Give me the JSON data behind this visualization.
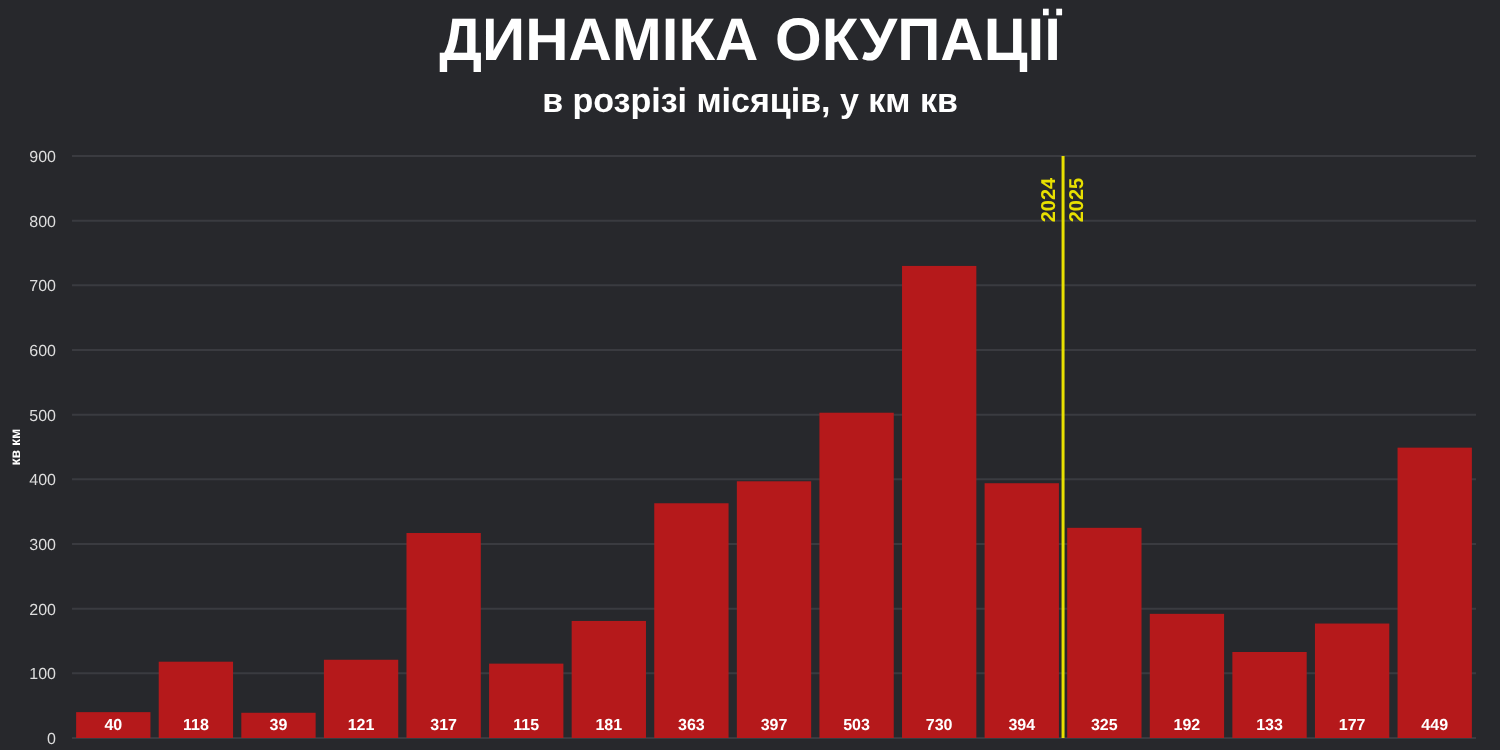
{
  "chart_data": {
    "type": "bar",
    "title": "ДИНАМІКА ОКУПАЦІЇ",
    "subtitle": "в розрізі місяців, у км кв",
    "ylabel": "кв км",
    "categories": [
      null,
      null,
      null,
      null,
      null,
      null,
      null,
      null,
      null,
      null,
      null,
      null,
      null,
      null,
      null,
      null,
      null
    ],
    "values": [
      40,
      118,
      39,
      121,
      317,
      115,
      181,
      363,
      397,
      503,
      730,
      394,
      325,
      192,
      133,
      177,
      449
    ],
    "color": "#b5191b",
    "ylim": [
      0,
      900
    ],
    "yticks": [
      0,
      100,
      200,
      300,
      400,
      500,
      600,
      700,
      800,
      900
    ],
    "grid": "y",
    "data_labels": true,
    "annotations": [
      "2024",
      "2025"
    ]
  }
}
